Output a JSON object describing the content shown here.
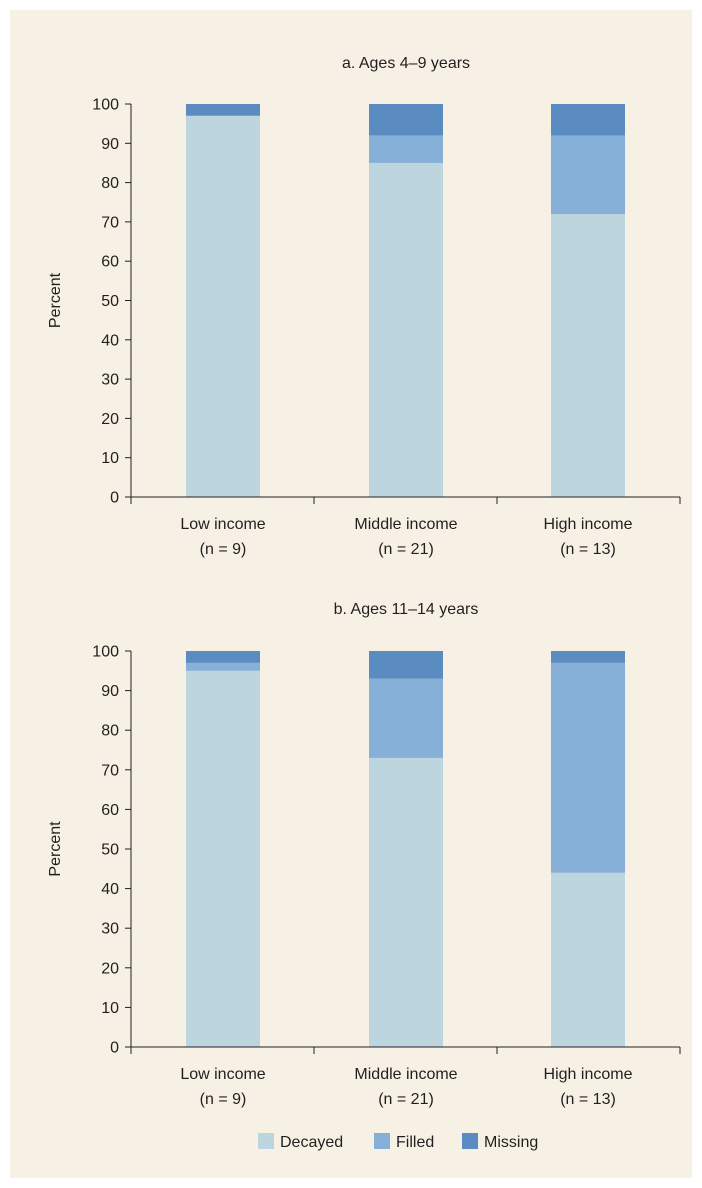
{
  "colors": {
    "background": "#f6f1e4",
    "decayed": "#bcd5df",
    "filled": "#86b0d7",
    "missing": "#5b8cc1",
    "axis": "#231f20"
  },
  "legend": [
    "Decayed",
    "Filled",
    "Missing"
  ],
  "chart_data": [
    {
      "type": "bar",
      "stacked": true,
      "title": "a. Ages 4–9 years",
      "ylabel": "Percent",
      "xlabel": "",
      "ylim": [
        0,
        100
      ],
      "yticks": [
        0,
        10,
        20,
        30,
        40,
        50,
        60,
        70,
        80,
        90,
        100
      ],
      "categories": [
        [
          "Low income",
          "(n = 9)"
        ],
        [
          "Middle income",
          "(n = 21)"
        ],
        [
          "High income",
          "(n = 13)"
        ]
      ],
      "series": [
        {
          "name": "Decayed",
          "values": [
            97,
            85,
            72
          ]
        },
        {
          "name": "Filled",
          "values": [
            0,
            7,
            20
          ]
        },
        {
          "name": "Missing",
          "values": [
            3,
            8,
            8
          ]
        }
      ]
    },
    {
      "type": "bar",
      "stacked": true,
      "title": "b. Ages 11–14 years",
      "ylabel": "Percent",
      "xlabel": "",
      "ylim": [
        0,
        100
      ],
      "yticks": [
        0,
        10,
        20,
        30,
        40,
        50,
        60,
        70,
        80,
        90,
        100
      ],
      "categories": [
        [
          "Low income",
          "(n = 9)"
        ],
        [
          "Middle income",
          "(n = 21)"
        ],
        [
          "High income",
          "(n = 13)"
        ]
      ],
      "series": [
        {
          "name": "Decayed",
          "values": [
            95,
            73,
            44
          ]
        },
        {
          "name": "Filled",
          "values": [
            2,
            20,
            53
          ]
        },
        {
          "name": "Missing",
          "values": [
            3,
            7,
            3
          ]
        }
      ]
    }
  ]
}
